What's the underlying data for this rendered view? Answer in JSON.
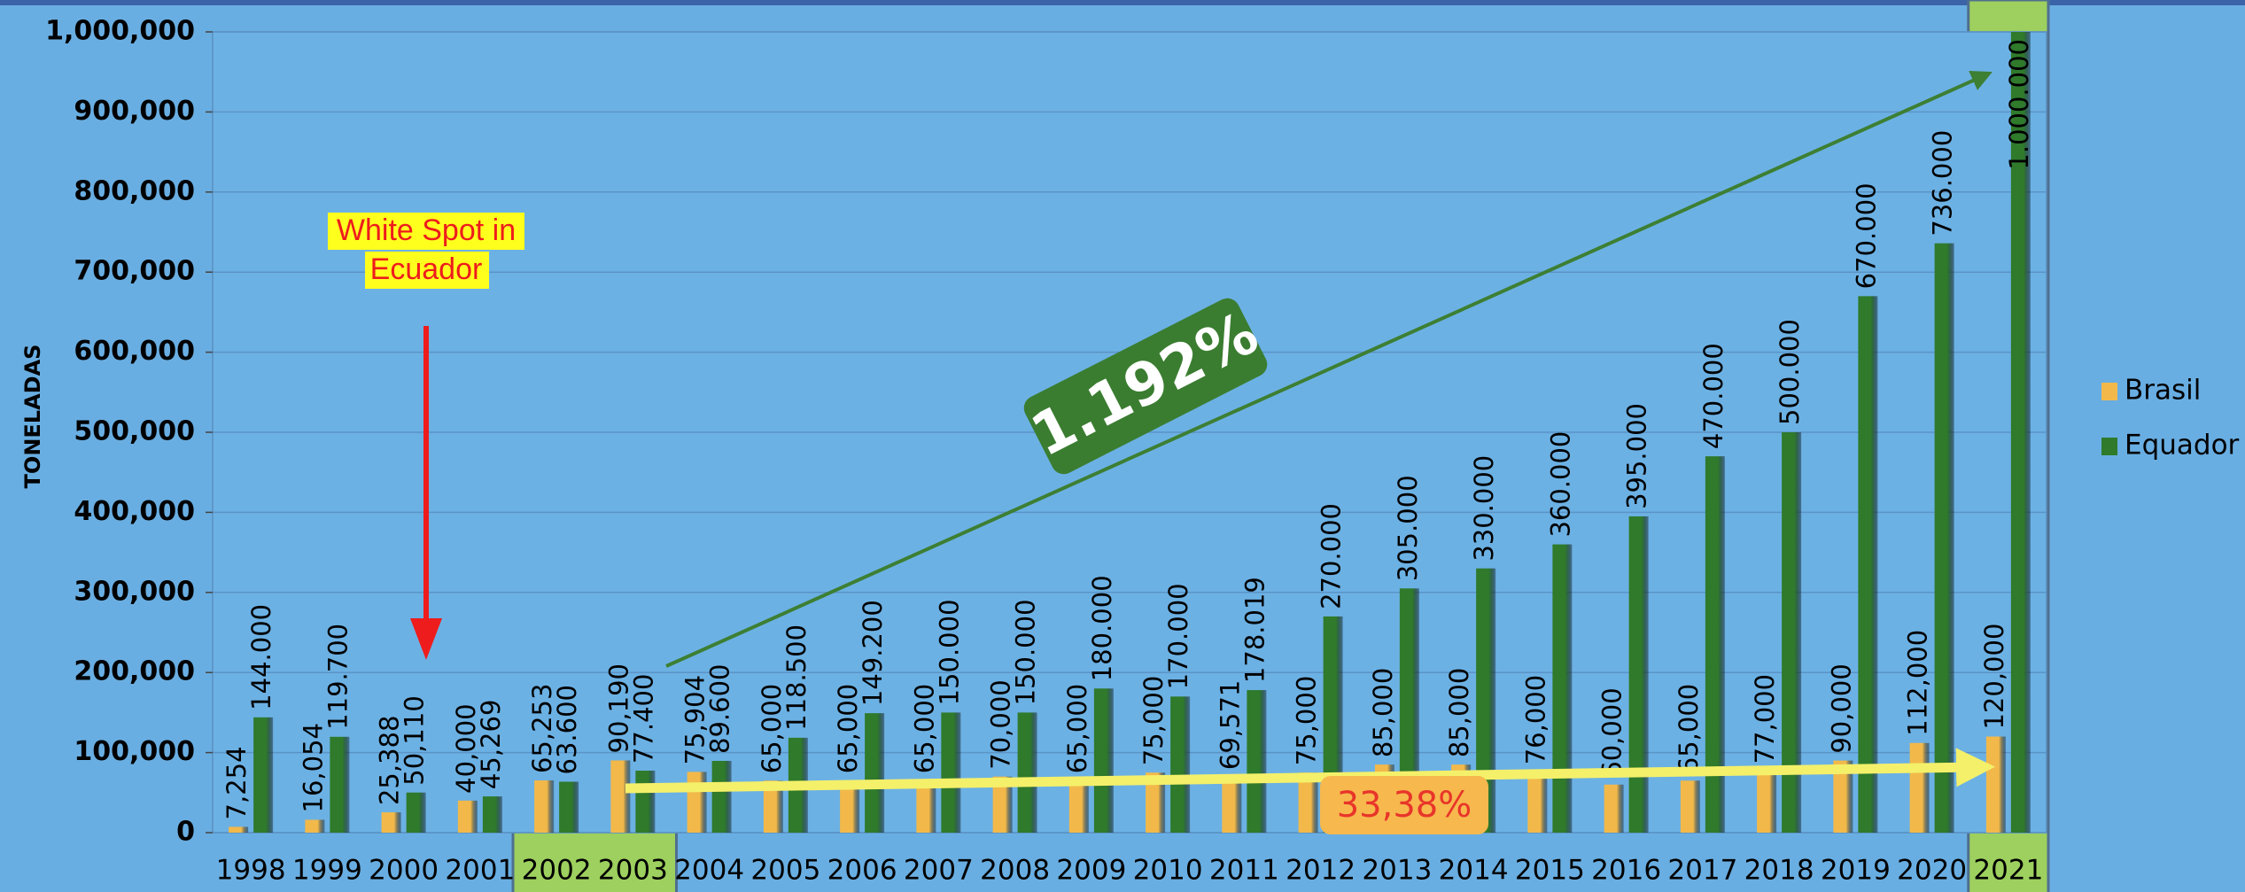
{
  "chart_data": {
    "type": "bar",
    "y_axis_label": "TONELADAS",
    "categories": [
      "1998",
      "1999",
      "2000",
      "2001",
      "2002",
      "2003",
      "2004",
      "2005",
      "2006",
      "2007",
      "2008",
      "2009",
      "2010",
      "2011",
      "2012",
      "2013",
      "2014",
      "2015",
      "2016",
      "2017",
      "2018",
      "2019",
      "2020",
      "2021"
    ],
    "series": [
      {
        "name": "Brasil",
        "color": "#f2b94a",
        "values": [
          7254,
          16054,
          25388,
          40000,
          65253,
          90190,
          75904,
          65000,
          65000,
          65000,
          70000,
          65000,
          75000,
          69571,
          75000,
          85000,
          85000,
          76000,
          60000,
          65000,
          77000,
          90000,
          112000,
          120000
        ],
        "value_labels": [
          "7,254",
          "16,054",
          "25,388",
          "40,000",
          "65,253",
          "90,190",
          "75,904",
          "65,000",
          "65,000",
          "65,000",
          "70,000",
          "65,000",
          "75,000",
          "69,571",
          "75,000",
          "85,000",
          "85,000",
          "76,000",
          "60,000",
          "65,000",
          "77,000",
          "90,000",
          "112,000",
          "120,000"
        ]
      },
      {
        "name": "Equador",
        "color": "#2f7a2b",
        "values": [
          144000,
          119700,
          50110,
          45269,
          63600,
          77400,
          89600,
          118500,
          149200,
          150000,
          150000,
          180000,
          170000,
          178019,
          270000,
          305000,
          330000,
          360000,
          395000,
          470000,
          500000,
          670000,
          736000,
          1000000
        ],
        "value_labels": [
          "144.000",
          "119.700",
          "50,110",
          "45,269",
          "63.600",
          "77.400",
          "89.600",
          "118.500",
          "149.200",
          "150.000",
          "150.000",
          "180.000",
          "170.000",
          "178.019",
          "270.000",
          "305.000",
          "330.000",
          "360.000",
          "395.000",
          "470.000",
          "500.000",
          "670.000",
          "736.000",
          "1.000.000"
        ]
      }
    ],
    "ylim": [
      0,
      1000000
    ],
    "yticks": [
      0,
      {
        "value": 100000,
        "label": "100,000"
      },
      {
        "value": 200000,
        "label": "200,000"
      },
      {
        "value": 300000,
        "label": "300,000"
      },
      {
        "value": 400000,
        "label": "400,000"
      },
      {
        "value": 500000,
        "label": "500,000"
      },
      {
        "value": 600000,
        "label": "600,000"
      },
      {
        "value": 700000,
        "label": "700,000"
      },
      {
        "value": 800000,
        "label": "800,000"
      },
      {
        "value": 900000,
        "label": "900,000"
      },
      {
        "value": 1000000,
        "label": "1,000,000"
      }
    ],
    "grid": true,
    "legend": "right",
    "annotations": [
      {
        "lines": [
          "White Spot in",
          "Ecuador"
        ]
      },
      {
        "lines": [
          "1.192%"
        ]
      },
      {
        "lines": [
          "33,38%"
        ]
      }
    ]
  }
}
